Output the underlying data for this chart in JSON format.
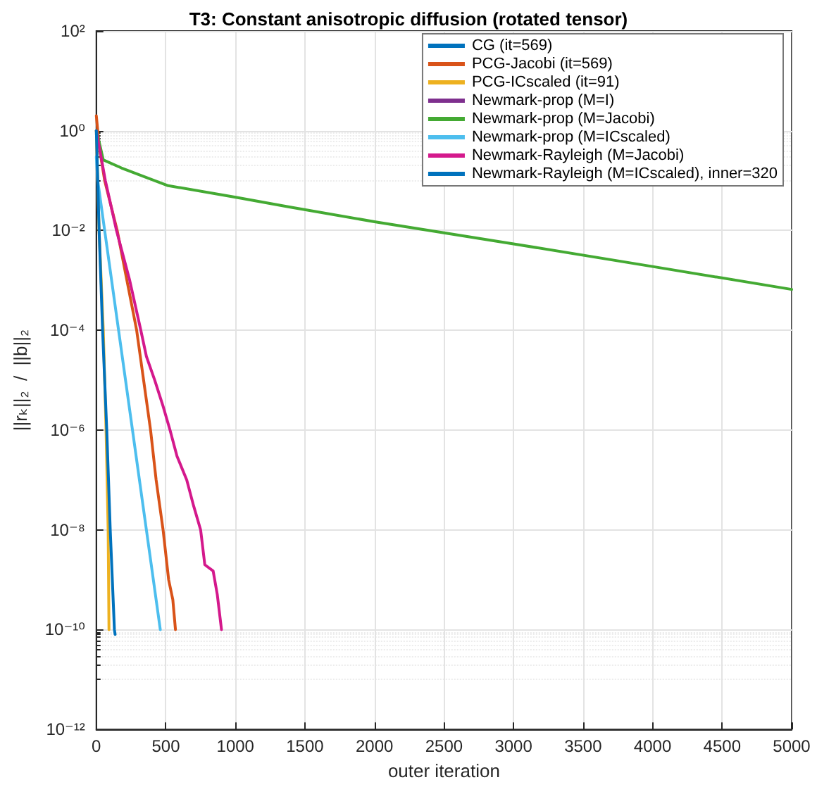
{
  "chart_data": {
    "type": "line",
    "title": "T3: Constant anisotropic diffusion (rotated tensor)",
    "xlabel": "outer iteration",
    "ylabel": "||rₖ||₂  /  ||b||₂",
    "log": "y",
    "grid": true,
    "legend": "top right",
    "marker": "none",
    "line_style": "solid",
    "xlim": [
      0,
      5000
    ],
    "xticks": [
      0,
      500,
      1000,
      1500,
      2000,
      2500,
      3000,
      3500,
      4000,
      4500,
      5000
    ],
    "ylim": [
      1e-12,
      100
    ],
    "yticks": [
      {
        "value": 1e-12,
        "label": "10⁻¹²"
      },
      {
        "value": 1e-10,
        "label": "10⁻¹⁰"
      },
      {
        "value": 1e-08,
        "label": "10⁻⁸"
      },
      {
        "value": 1e-06,
        "label": "10⁻⁶"
      },
      {
        "value": 0.0001,
        "label": "10⁻⁴"
      },
      {
        "value": 0.01,
        "label": "10⁻²"
      },
      {
        "value": 1,
        "label": "10⁰"
      },
      {
        "value": 100,
        "label": "10²"
      }
    ],
    "series": [
      {
        "name": "CG (it=569)",
        "color": "#0072bd"
      },
      {
        "name": "PCG-Jacobi (it=569)",
        "color": "#d95319",
        "x": [
          0,
          20,
          60,
          150,
          220,
          290,
          340,
          390,
          430,
          480,
          520,
          550,
          569
        ],
        "values": [
          2,
          0.5,
          0.1,
          0.01,
          0.001,
          0.0001,
          1e-05,
          1e-06,
          1e-07,
          1e-08,
          1e-09,
          4e-10,
          1e-10
        ]
      },
      {
        "name": "PCG-ICscaled (it=91)",
        "color": "#edb120",
        "x": [
          0,
          20,
          50,
          70,
          85,
          91
        ],
        "values": [
          1,
          0.01,
          0.0001,
          1e-06,
          1e-08,
          1e-10
        ]
      },
      {
        "name": "Newmark-prop (M=I)",
        "color": "#7e2f8e"
      },
      {
        "name": "Newmark-prop (M=Jacobi)",
        "color": "#44aa33",
        "x": [
          0,
          10,
          50,
          180,
          510,
          1010,
          1380,
          2000,
          3000,
          4000,
          5000
        ],
        "values": [
          1,
          0.8,
          0.26,
          0.18,
          0.08,
          0.046,
          0.03,
          0.015,
          0.0054,
          0.0019,
          0.00066
        ]
      },
      {
        "name": "Newmark-prop (M=ICscaled)",
        "color": "#4dbeee",
        "x": [
          0,
          10,
          60,
          160,
          260,
          360,
          460
        ],
        "values": [
          0.3,
          0.1,
          0.01,
          0.0001,
          1e-06,
          1e-08,
          1e-10
        ]
      },
      {
        "name": "Newmark-Rayleigh (M=Jacobi)",
        "color": "#d4198c",
        "x": [
          0,
          65,
          145,
          240,
          320,
          360,
          420,
          480,
          530,
          580,
          650,
          700,
          750,
          780,
          840,
          870,
          900
        ],
        "values": [
          1,
          0.1,
          0.01,
          0.001,
          0.0001,
          3e-05,
          1e-05,
          3e-06,
          1e-06,
          3e-07,
          1e-07,
          3e-08,
          1e-08,
          2e-09,
          1.5e-09,
          5e-10,
          1e-10
        ]
      },
      {
        "name": "Newmark-Rayleigh (M=ICscaled), inner=320",
        "color": "#0072bd",
        "x": [
          0,
          20,
          45,
          75,
          100,
          130,
          135
        ],
        "values": [
          1,
          0.01,
          0.0001,
          1e-06,
          1e-08,
          1e-10,
          8e-11
        ]
      }
    ]
  }
}
